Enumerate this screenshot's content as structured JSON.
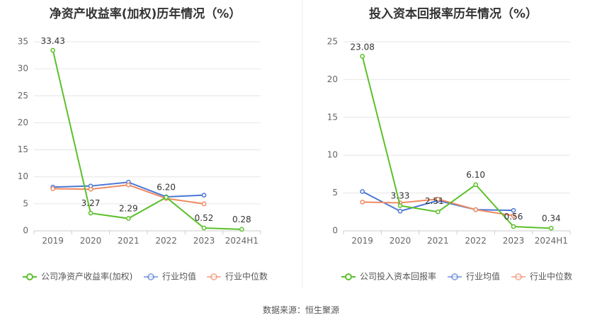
{
  "source": "数据来源：恒生聚源",
  "chart_data": [
    {
      "type": "line",
      "title": "净资产收益率(加权)历年情况（%）",
      "categories": [
        "2019",
        "2020",
        "2021",
        "2022",
        "2023",
        "2024H1"
      ],
      "ylim": [
        0,
        35
      ],
      "yticks": [
        0,
        5,
        10,
        15,
        20,
        25,
        30,
        35
      ],
      "grid": true,
      "legend_position": "bottom",
      "series": [
        {
          "name": "公司净资产收益率(加权)",
          "color": "#5cc02a",
          "values": [
            33.43,
            3.27,
            2.29,
            6.2,
            0.52,
            0.28
          ],
          "labels": [
            "33.43",
            "3.27",
            "2.29",
            "6.20",
            "0.52",
            "0.28"
          ]
        },
        {
          "name": "行业均值",
          "color": "#4a77d6",
          "values": [
            8.1,
            8.3,
            9.0,
            6.3,
            6.6,
            null
          ]
        },
        {
          "name": "行业中位数",
          "color": "#ef8a63",
          "values": [
            7.8,
            7.7,
            8.5,
            6.0,
            5.0,
            null
          ]
        }
      ]
    },
    {
      "type": "line",
      "title": "投入资本回报率历年情况（%）",
      "categories": [
        "2019",
        "2020",
        "2021",
        "2022",
        "2023",
        "2024H1"
      ],
      "ylim": [
        0,
        25
      ],
      "yticks": [
        0,
        5,
        10,
        15,
        20,
        25
      ],
      "grid": true,
      "legend_position": "bottom",
      "series": [
        {
          "name": "公司投入资本回报率",
          "color": "#5cc02a",
          "values": [
            23.08,
            3.33,
            2.51,
            6.1,
            0.56,
            0.34
          ],
          "labels": [
            "23.08",
            "3.33",
            "2.51",
            "6.10",
            "0.56",
            "0.34"
          ]
        },
        {
          "name": "行业均值",
          "color": "#4a77d6",
          "values": [
            5.2,
            2.6,
            4.0,
            2.8,
            2.7,
            null
          ]
        },
        {
          "name": "行业中位数",
          "color": "#ef8a63",
          "values": [
            3.8,
            3.7,
            4.2,
            2.8,
            2.0,
            null
          ]
        }
      ]
    }
  ]
}
